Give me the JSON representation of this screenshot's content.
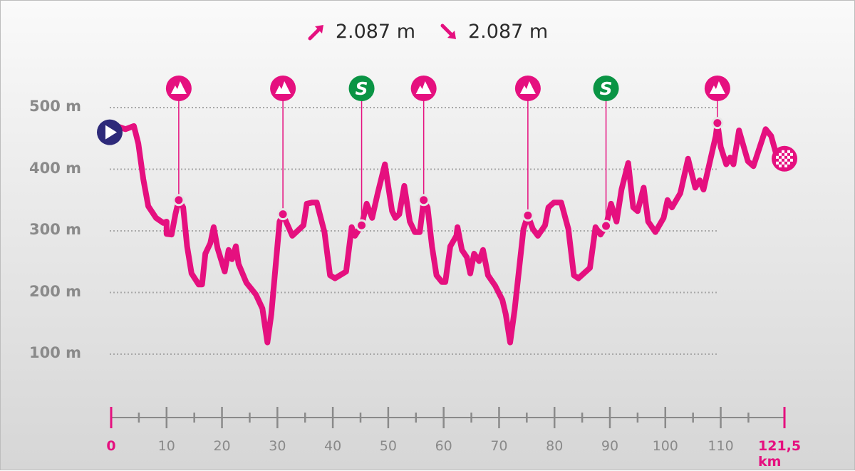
{
  "header": {
    "ascent": "2.087 m",
    "descent": "2.087 m",
    "ascent_icon": "arrow-up-right-icon",
    "descent_icon": "arrow-down-right-icon"
  },
  "colors": {
    "profile": "#e5107f",
    "kom": "#e5107f",
    "sprint": "#0a9444",
    "start": "#2e2a7a",
    "axis": "#8a8a8a"
  },
  "chart_data": {
    "type": "line",
    "xlabel": "",
    "ylabel": "",
    "xlim": [
      0,
      121.5
    ],
    "ylim": [
      100,
      500
    ],
    "grid": true,
    "y_ticks": [
      {
        "value": 500,
        "label": "500 m"
      },
      {
        "value": 400,
        "label": "400 m"
      },
      {
        "value": 300,
        "label": "300 m"
      },
      {
        "value": 200,
        "label": "200 m"
      },
      {
        "value": 100,
        "label": "100 m"
      }
    ],
    "x_ticks": [
      {
        "value": 0,
        "label": "0",
        "accent": true
      },
      {
        "value": 10,
        "label": "10"
      },
      {
        "value": 20,
        "label": "20"
      },
      {
        "value": 30,
        "label": "30"
      },
      {
        "value": 40,
        "label": "40"
      },
      {
        "value": 50,
        "label": "50"
      },
      {
        "value": 60,
        "label": "60"
      },
      {
        "value": 70,
        "label": "70"
      },
      {
        "value": 80,
        "label": "80"
      },
      {
        "value": 90,
        "label": "90"
      },
      {
        "value": 100,
        "label": "100"
      },
      {
        "value": 110,
        "label": "110"
      },
      {
        "value": 121.5,
        "label": "121,5 km",
        "accent": true
      }
    ],
    "x": [
      0,
      1.3,
      2.6,
      4.1,
      4.9,
      5.8,
      6.7,
      8.1,
      9.4,
      10.0,
      10.0,
      10.9,
      11.6,
      12.2,
      13.0,
      13.7,
      14.5,
      15.8,
      16.4,
      17.0,
      17.9,
      18.5,
      19.2,
      20.5,
      21.2,
      21.8,
      22.5,
      23.0,
      24.4,
      26.1,
      27.3,
      28.2,
      28.9,
      30.4,
      31.0,
      31.7,
      32.7,
      34.7,
      35.3,
      36.3,
      37.1,
      38.5,
      39.5,
      40.4,
      42.4,
      43.4,
      44.0,
      45.2,
      46.1,
      47.1,
      48.1,
      49.4,
      50.7,
      51.3,
      52.0,
      52.9,
      53.9,
      54.8,
      55.7,
      56.4,
      57.1,
      57.9,
      58.7,
      59.7,
      60.3,
      61.2,
      62.3,
      62.5,
      63.3,
      64.2,
      64.8,
      65.5,
      66.4,
      67.1,
      68.0,
      69.3,
      70.6,
      71.2,
      72.0,
      72.8,
      74.4,
      75.2,
      76.1,
      77.0,
      78.3,
      78.9,
      79.9,
      81.2,
      82.5,
      83.5,
      84.3,
      86.4,
      87.4,
      88.3,
      89.3,
      90.2,
      91.2,
      92.1,
      93.3,
      94.2,
      95.0,
      96.1,
      96.9,
      98.2,
      99.7,
      100.4,
      101.2,
      102.7,
      104.1,
      105.4,
      106.2,
      106.9,
      109.1,
      109.4,
      110.0,
      111.0,
      111.7,
      112.3,
      113.3,
      114.9,
      115.9,
      118.1,
      119.1,
      120.0,
      121.5
    ],
    "y": [
      460,
      469,
      465,
      470,
      442,
      384,
      340,
      321,
      313,
      315,
      295,
      294,
      327,
      350,
      338,
      275,
      231,
      213,
      213,
      263,
      280,
      306,
      272,
      234,
      269,
      254,
      275,
      246,
      216,
      197,
      174,
      119,
      165,
      315,
      327,
      312,
      292,
      309,
      344,
      346,
      346,
      298,
      228,
      223,
      234,
      306,
      292,
      309,
      344,
      321,
      361,
      408,
      332,
      321,
      327,
      373,
      315,
      298,
      298,
      350,
      338,
      275,
      228,
      217,
      217,
      275,
      292,
      306,
      269,
      257,
      231,
      263,
      251,
      269,
      228,
      211,
      188,
      165,
      119,
      171,
      303,
      325,
      303,
      292,
      309,
      338,
      346,
      346,
      303,
      228,
      223,
      240,
      306,
      294,
      308,
      344,
      315,
      367,
      410,
      338,
      332,
      370,
      315,
      298,
      321,
      350,
      338,
      361,
      417,
      370,
      382,
      367,
      454,
      475,
      436,
      408,
      419,
      408,
      463,
      413,
      405,
      465,
      454,
      425,
      417
    ],
    "markers": [
      {
        "type": "kom",
        "icon": "mountain-icon",
        "km": 12.2,
        "elevation": 350
      },
      {
        "type": "kom",
        "icon": "mountain-icon",
        "km": 31.0,
        "elevation": 327
      },
      {
        "type": "sprint",
        "icon": "sprint-s-icon",
        "label": "S",
        "km": 45.2,
        "elevation": 309
      },
      {
        "type": "kom",
        "icon": "mountain-icon",
        "km": 56.4,
        "elevation": 350
      },
      {
        "type": "kom",
        "icon": "mountain-icon",
        "km": 75.2,
        "elevation": 325
      },
      {
        "type": "sprint",
        "icon": "sprint-s-icon",
        "label": "S",
        "km": 89.3,
        "elevation": 308
      },
      {
        "type": "kom",
        "icon": "mountain-icon",
        "km": 109.4,
        "elevation": 475
      }
    ],
    "start_icon": "play-icon",
    "finish_icon": "checkered-flag-icon"
  }
}
